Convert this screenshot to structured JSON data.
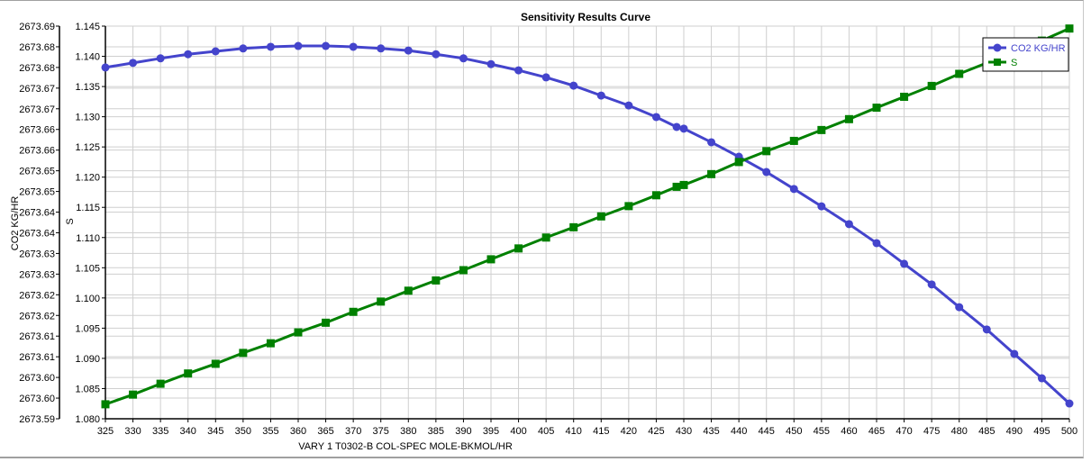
{
  "chart_data": {
    "type": "line",
    "title": "Sensitivity Results Curve",
    "xlabel": "VARY   1 T0302-B COL-SPEC MOLE-BKMOL/HR",
    "ylabel_left": "CO2 KG/HR",
    "ylabel_right": "S",
    "xlim": [
      325,
      500
    ],
    "xticks": [
      325,
      330,
      335,
      340,
      345,
      350,
      355,
      360,
      365,
      370,
      375,
      380,
      385,
      390,
      395,
      400,
      405,
      410,
      415,
      420,
      425,
      430,
      435,
      440,
      445,
      450,
      455,
      460,
      465,
      470,
      475,
      480,
      485,
      490,
      495,
      500
    ],
    "ylim_left": [
      2673.594,
      2673.689
    ],
    "yticks_left": [
      "2673.69",
      "2673.68",
      "2673.68",
      "2673.67",
      "2673.67",
      "2673.66",
      "2673.66",
      "2673.65",
      "2673.65",
      "2673.64",
      "2673.64",
      "2673.63",
      "2673.63",
      "2673.62",
      "2673.62",
      "2673.61",
      "2673.61",
      "2673.60",
      "2673.60",
      "2673.59"
    ],
    "ylim_right": [
      1.08,
      1.145
    ],
    "yticks_right": [
      "1.145",
      "1.140",
      "1.135",
      "1.130",
      "1.125",
      "1.120",
      "1.115",
      "1.110",
      "1.105",
      "1.100",
      "1.095",
      "1.090",
      "1.085",
      "1.080"
    ],
    "grid": true,
    "legend_position": "top-right",
    "x": [
      325,
      330,
      335,
      340,
      345,
      350,
      355,
      360,
      365,
      370,
      375,
      380,
      385,
      390,
      395,
      400,
      405,
      410,
      415,
      420,
      425,
      428.7,
      430,
      435,
      440,
      445,
      450,
      455,
      460,
      465,
      470,
      475,
      480,
      485,
      490,
      495,
      500
    ],
    "series": [
      {
        "name": "CO2 KG/HR",
        "axis": "left",
        "color": "#4444cc",
        "marker": "circle",
        "values": [
          2673.679,
          2673.6801,
          2673.6812,
          2673.6822,
          2673.6829,
          2673.6836,
          2673.684,
          2673.6842,
          2673.6842,
          2673.684,
          2673.6836,
          2673.6831,
          2673.6822,
          2673.6812,
          2673.6798,
          2673.6783,
          2673.6766,
          2673.6746,
          2673.6722,
          2673.6698,
          2673.667,
          2673.6646,
          2673.6642,
          2673.6609,
          2673.6574,
          2673.6537,
          2673.6496,
          2673.6454,
          2673.6411,
          2673.6365,
          2673.6315,
          2673.6265,
          2673.621,
          2673.6156,
          2673.6097,
          2673.6038,
          2673.5977
        ]
      },
      {
        "name": "S",
        "axis": "right",
        "color": "#008000",
        "marker": "square",
        "values": [
          1.0824,
          1.084,
          1.0858,
          1.0875,
          1.0891,
          1.0909,
          1.0925,
          1.0943,
          1.0959,
          1.0977,
          1.0994,
          1.1012,
          1.1029,
          1.1046,
          1.1064,
          1.1082,
          1.11,
          1.1117,
          1.1135,
          1.1152,
          1.117,
          1.1184,
          1.1187,
          1.1205,
          1.1225,
          1.1243,
          1.126,
          1.1278,
          1.1296,
          1.1315,
          1.1333,
          1.1351,
          1.1371,
          1.1389,
          1.1408,
          1.1426,
          1.1446
        ]
      }
    ]
  }
}
